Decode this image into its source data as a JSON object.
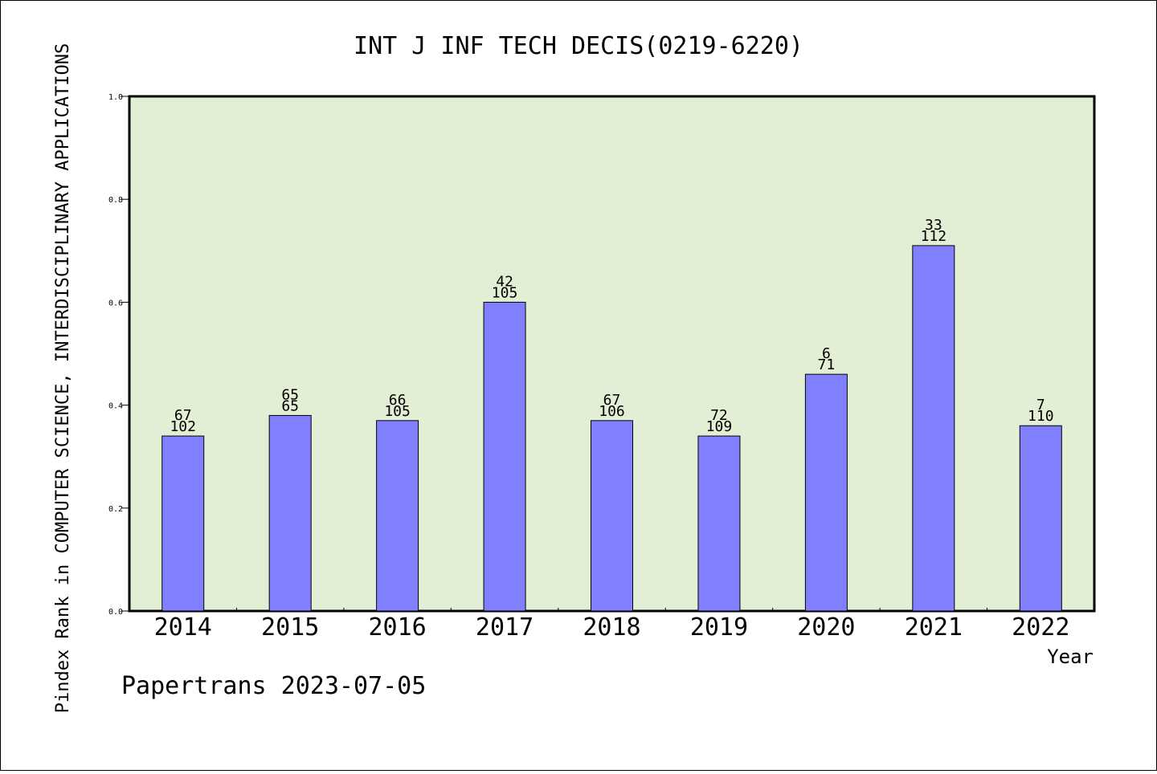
{
  "chart_data": {
    "type": "bar",
    "title": "INT J INF TECH DECIS(0219-6220)",
    "ylabel": "Pindex Rank in COMPUTER SCIENCE, INTERDISCIPLINARY APPLICATIONS",
    "xlabel": "Year",
    "categories": [
      "2014",
      "2015",
      "2016",
      "2017",
      "2018",
      "2019",
      "2020",
      "2021",
      "2022"
    ],
    "values": [
      0.34,
      0.38,
      0.37,
      0.6,
      0.37,
      0.34,
      0.46,
      0.71,
      0.36
    ],
    "top_labels": [
      "67",
      "65",
      "66",
      "42",
      "67",
      "72",
      "6",
      "33",
      "7"
    ],
    "bottom_labels": [
      "102",
      "65",
      "105",
      "105",
      "106",
      "109",
      "71",
      "112",
      "110"
    ],
    "ylim": [
      0,
      1.0
    ],
    "yticks": [
      "0.0",
      "0.2",
      "0.4",
      "0.6",
      "0.8",
      "1.0"
    ],
    "grid": false,
    "colors": {
      "bar": "#8080ff",
      "plot_bg": "#e2efd5"
    }
  },
  "footer": "Papertrans 2023-07-05"
}
